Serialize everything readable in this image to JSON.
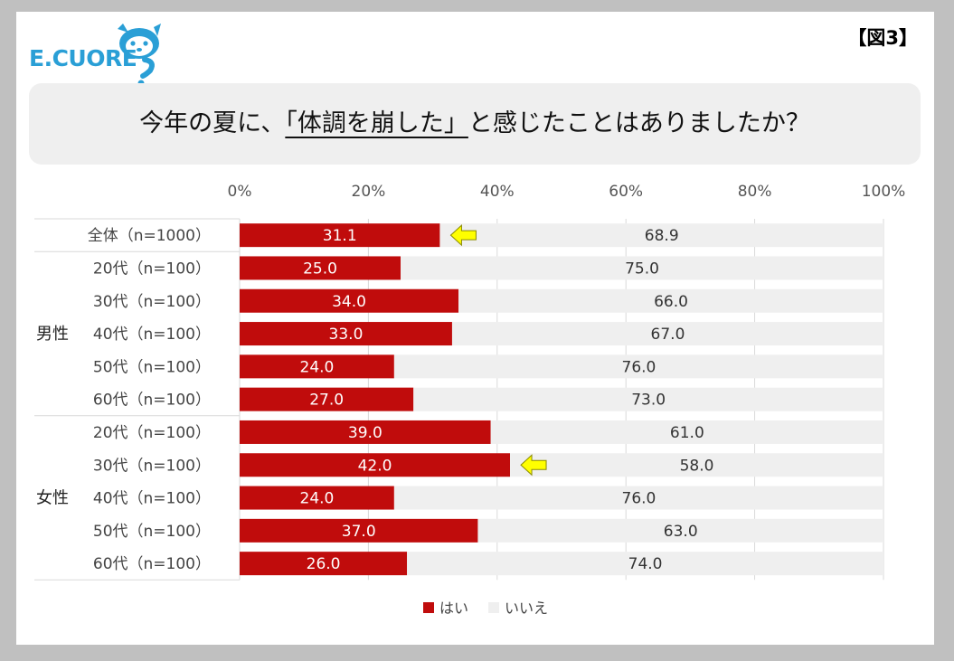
{
  "logo": {
    "text": "E.CUORE",
    "color": "#2a9fd6"
  },
  "figure_label": "【図3】",
  "title": {
    "prefix": "今年の夏に、",
    "emphasis": "「体調を崩した」",
    "suffix": "と感じたことはありましたか？"
  },
  "colors": {
    "yes": "#c00c0c",
    "no": "#efefef",
    "arrow": "#ffff00"
  },
  "chart_data": {
    "type": "bar",
    "orientation": "horizontal",
    "stacked": true,
    "xlim": [
      0,
      100
    ],
    "x_ticks": [
      "0%",
      "20%",
      "40%",
      "60%",
      "80%",
      "100%"
    ],
    "groups": [
      {
        "label": "",
        "rows": [
          "全体（n=1000）"
        ]
      },
      {
        "label": "男性",
        "rows": [
          "20代（n=100）",
          "30代（n=100）",
          "40代（n=100）",
          "50代（n=100）",
          "60代（n=100）"
        ]
      },
      {
        "label": "女性",
        "rows": [
          "20代（n=100）",
          "30代（n=100）",
          "40代（n=100）",
          "50代（n=100）",
          "60代（n=100）"
        ]
      }
    ],
    "series": [
      {
        "name": "はい",
        "values": [
          "31.1",
          "25.0",
          "34.0",
          "33.0",
          "24.0",
          "27.0",
          "39.0",
          "42.0",
          "24.0",
          "37.0",
          "26.0"
        ]
      },
      {
        "name": "いいえ",
        "values": [
          "68.9",
          "75.0",
          "66.0",
          "67.0",
          "76.0",
          "73.0",
          "61.0",
          "58.0",
          "76.0",
          "63.0",
          "74.0"
        ]
      }
    ],
    "highlighted_rows": [
      0,
      7
    ],
    "legend": {
      "position": "bottom"
    },
    "grid": true
  }
}
